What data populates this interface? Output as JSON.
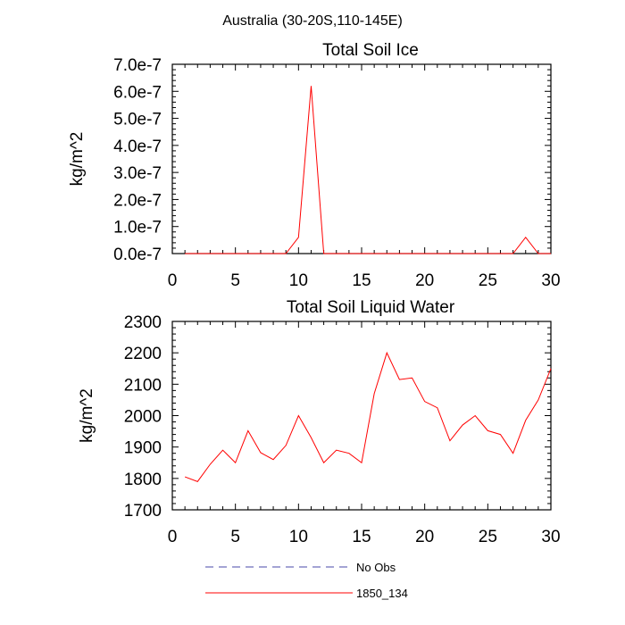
{
  "suptitle": "Australia (30-20S,110-145E)",
  "chart_data": [
    {
      "type": "line",
      "title": "Total Soil Ice",
      "xlabel": "",
      "ylabel": "kg/m^2",
      "xlim": [
        0,
        30
      ],
      "ylim": [
        0,
        7e-07
      ],
      "xticks": [
        "0",
        "5",
        "10",
        "15",
        "20",
        "25",
        "30"
      ],
      "yticks": [
        "0.0e-7",
        "1.0e-7",
        "2.0e-7",
        "3.0e-7",
        "4.0e-7",
        "5.0e-7",
        "6.0e-7",
        "7.0e-7"
      ],
      "x": [
        1,
        2,
        3,
        4,
        5,
        6,
        7,
        8,
        9,
        10,
        11,
        12,
        13,
        14,
        15,
        16,
        17,
        18,
        19,
        20,
        21,
        22,
        23,
        24,
        25,
        26,
        27,
        28,
        29,
        30
      ],
      "series": [
        {
          "name": "1850_134",
          "color": "#ff0000",
          "values": [
            0,
            0,
            0,
            0,
            0,
            0,
            0,
            0,
            0,
            6e-08,
            6.2e-07,
            0,
            0,
            0,
            0,
            0,
            0,
            0,
            0,
            0,
            0,
            0,
            0,
            0,
            0,
            0,
            0,
            6e-08,
            0,
            0
          ]
        }
      ]
    },
    {
      "type": "line",
      "title": "Total Soil Liquid Water",
      "xlabel": "",
      "ylabel": "kg/m^2",
      "xlim": [
        0,
        30
      ],
      "ylim": [
        1700,
        2300
      ],
      "xticks": [
        "0",
        "5",
        "10",
        "15",
        "20",
        "25",
        "30"
      ],
      "yticks": [
        "1700",
        "1800",
        "1900",
        "2000",
        "2100",
        "2200",
        "2300"
      ],
      "x": [
        1,
        2,
        3,
        4,
        5,
        6,
        7,
        8,
        9,
        10,
        11,
        12,
        13,
        14,
        15,
        16,
        17,
        18,
        19,
        20,
        21,
        22,
        23,
        24,
        25,
        26,
        27,
        28,
        29,
        30
      ],
      "series": [
        {
          "name": "1850_134",
          "color": "#ff0000",
          "values": [
            1805,
            1790,
            1845,
            1890,
            1850,
            1952,
            1882,
            1860,
            1905,
            2000,
            1930,
            1850,
            1890,
            1880,
            1850,
            2070,
            2200,
            2115,
            2120,
            2045,
            2025,
            1920,
            1970,
            2000,
            1952,
            1940,
            1880,
            1985,
            2050,
            2150
          ]
        }
      ]
    }
  ],
  "legend": [
    {
      "label": "No Obs",
      "color": "#4a4aa8",
      "style": "dashed"
    },
    {
      "label": "1850_134",
      "color": "#ff0000",
      "style": "solid"
    }
  ]
}
